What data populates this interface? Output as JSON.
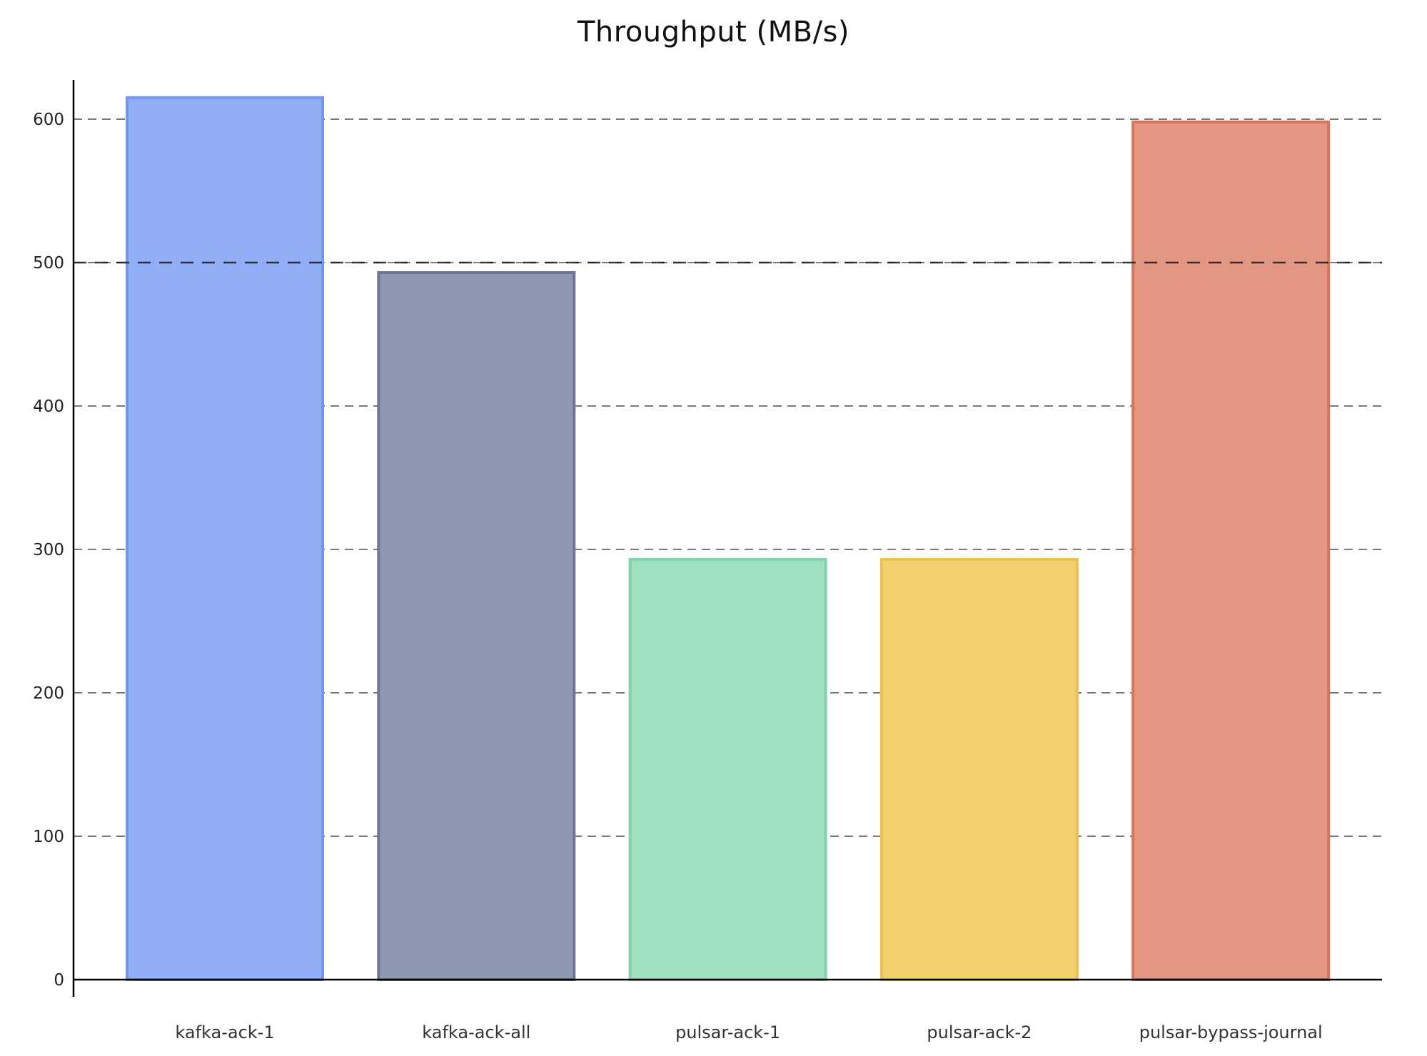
{
  "chart_data": {
    "type": "bar",
    "title": "Throughput (MB/s)",
    "xlabel": "",
    "ylabel": "",
    "categories": [
      "kafka-ack-1",
      "kafka-ack-all",
      "pulsar-ack-1",
      "pulsar-ack-2",
      "pulsar-bypass-journal"
    ],
    "values": [
      616,
      494,
      294,
      294,
      599
    ],
    "colors": [
      {
        "fill": "#91aef6",
        "edge": "#7496f0"
      },
      {
        "fill": "#8e98b0",
        "edge": "#6b7794"
      },
      {
        "fill": "#9fe0c1",
        "edge": "#82d2aa"
      },
      {
        "fill": "#f2d06e",
        "edge": "#ecc24e"
      },
      {
        "fill": "#e39783",
        "edge": "#d9735d"
      }
    ],
    "ylim": [
      0,
      630
    ],
    "yticks": [
      0,
      100,
      200,
      300,
      400,
      500,
      600
    ],
    "grid": true,
    "grid_style": "dashed",
    "reference_line": {
      "y": 500,
      "style": "dashed",
      "color": "#111111"
    },
    "legend": null
  }
}
